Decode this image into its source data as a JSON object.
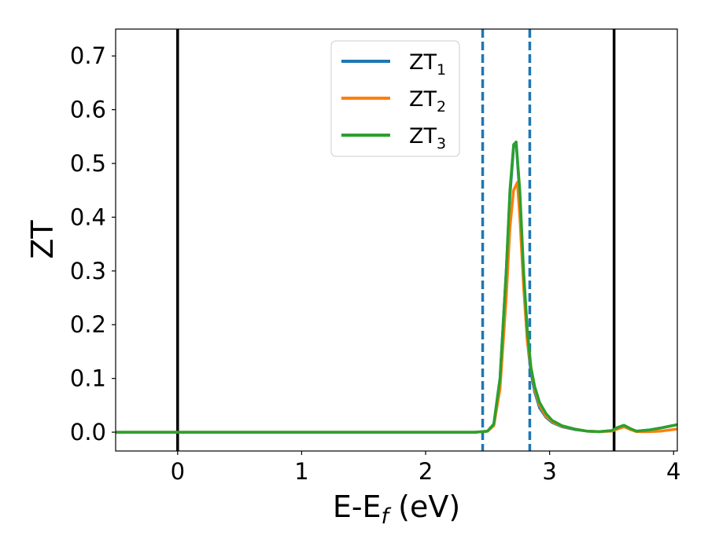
{
  "chart_data": {
    "type": "line",
    "xlabel": {
      "main": "E-E",
      "sub": "f",
      "unit": " (eV)"
    },
    "ylabel": "ZT",
    "xlim": [
      -0.5,
      4.03
    ],
    "ylim": [
      -0.035,
      0.75
    ],
    "xticks": [
      0,
      1,
      2,
      3,
      4
    ],
    "xtick_labels": [
      "0",
      "1",
      "2",
      "3",
      "4"
    ],
    "yticks": [
      0.0,
      0.1,
      0.2,
      0.3,
      0.4,
      0.5,
      0.6,
      0.7
    ],
    "ytick_labels": [
      "0.0",
      "0.1",
      "0.2",
      "0.3",
      "0.4",
      "0.5",
      "0.6",
      "0.7"
    ],
    "grid": false,
    "legend_placement": "upper-center",
    "vlines": [
      {
        "x": 0.0,
        "style": "solid",
        "color": "#000000"
      },
      {
        "x": 3.52,
        "style": "solid",
        "color": "#000000"
      },
      {
        "x": 2.46,
        "style": "dashed",
        "color": "#1f77b4"
      },
      {
        "x": 2.84,
        "style": "dashed",
        "color": "#1f77b4"
      }
    ],
    "series": [
      {
        "name": "ZT",
        "sub": "1",
        "color": "#1f77b4",
        "x": [
          -0.5,
          2.4,
          2.5,
          2.55,
          2.6,
          2.65,
          2.68,
          2.71,
          2.73,
          2.76,
          2.79,
          2.82,
          2.85,
          2.88,
          2.92,
          2.97,
          3.02,
          3.1,
          3.2,
          3.3,
          3.4,
          3.5,
          3.55,
          3.6,
          3.65,
          3.7,
          3.8,
          3.9,
          4.03
        ],
        "y": [
          0.0,
          0.0,
          0.002,
          0.015,
          0.1,
          0.3,
          0.44,
          0.53,
          0.54,
          0.44,
          0.28,
          0.17,
          0.11,
          0.075,
          0.045,
          0.028,
          0.018,
          0.01,
          0.005,
          0.002,
          0.001,
          0.003,
          0.008,
          0.012,
          0.006,
          0.002,
          0.004,
          0.008,
          0.014
        ]
      },
      {
        "name": "ZT",
        "sub": "2",
        "color": "#ff7f0e",
        "x": [
          -0.5,
          2.4,
          2.5,
          2.55,
          2.6,
          2.65,
          2.68,
          2.71,
          2.74,
          2.76,
          2.79,
          2.82,
          2.85,
          2.88,
          2.92,
          2.97,
          3.02,
          3.1,
          3.2,
          3.3,
          3.4,
          3.5,
          3.55,
          3.6,
          3.65,
          3.7,
          3.8,
          3.9,
          4.03
        ],
        "y": [
          0.0,
          0.0,
          0.002,
          0.012,
          0.08,
          0.25,
          0.38,
          0.45,
          0.465,
          0.4,
          0.27,
          0.17,
          0.12,
          0.08,
          0.05,
          0.03,
          0.02,
          0.011,
          0.006,
          0.002,
          0.001,
          0.002,
          0.006,
          0.01,
          0.005,
          0.001,
          0.001,
          0.002,
          0.006
        ]
      },
      {
        "name": "ZT",
        "sub": "3",
        "color": "#2ca02c",
        "x": [
          -0.5,
          2.4,
          2.5,
          2.55,
          2.6,
          2.65,
          2.68,
          2.71,
          2.73,
          2.76,
          2.79,
          2.82,
          2.85,
          2.88,
          2.92,
          2.97,
          3.02,
          3.1,
          3.2,
          3.3,
          3.4,
          3.5,
          3.55,
          3.6,
          3.65,
          3.7,
          3.8,
          3.9,
          4.03
        ],
        "y": [
          0.0,
          0.0,
          0.002,
          0.015,
          0.1,
          0.3,
          0.45,
          0.535,
          0.54,
          0.45,
          0.3,
          0.19,
          0.12,
          0.085,
          0.055,
          0.035,
          0.022,
          0.012,
          0.006,
          0.002,
          0.001,
          0.003,
          0.009,
          0.013,
          0.007,
          0.002,
          0.004,
          0.008,
          0.014
        ]
      }
    ]
  }
}
